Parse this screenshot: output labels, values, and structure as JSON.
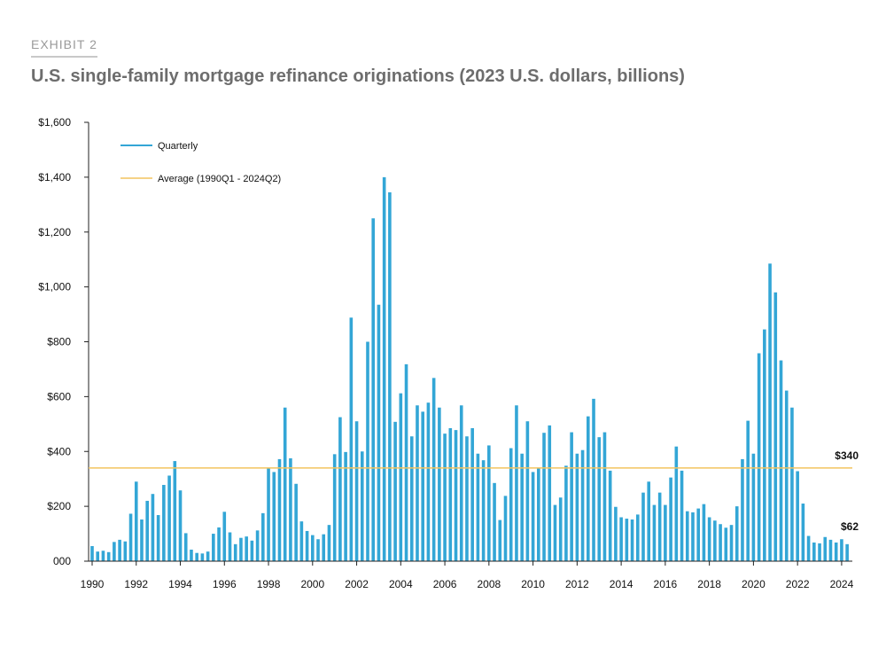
{
  "header": {
    "exhibit": "EXHIBIT 2",
    "title": "U.S. single-family mortgage refinance originations (2023 U.S. dollars, billions)"
  },
  "colors": {
    "bar": "#33a6d6",
    "average": "#f2c45f",
    "axis": "#222222"
  },
  "chart_data": {
    "type": "bar",
    "title": "U.S. single-family mortgage refinance originations (2023 U.S. dollars, billions)",
    "xlabel": "",
    "ylabel": "",
    "ylim": [
      0,
      1600
    ],
    "ytick_values": [
      0,
      200,
      400,
      600,
      800,
      1000,
      1200,
      1400,
      1600
    ],
    "ytick_labels": [
      "000",
      "$200",
      "$400",
      "$600",
      "$800",
      "$1,000",
      "$1,200",
      "$1,400",
      "$1,600"
    ],
    "xtick_labels": [
      "1990",
      "1992",
      "1994",
      "1996",
      "1998",
      "2000",
      "2002",
      "2004",
      "2006",
      "2008",
      "2010",
      "2012",
      "2014",
      "2016",
      "2018",
      "2020",
      "2022",
      "2024"
    ],
    "xtick_every_quarters": 8,
    "start_quarter": "1990Q1",
    "end_quarter": "2024Q2",
    "grid": false,
    "legend_position": "top-left",
    "series": [
      {
        "name": "Quarterly",
        "values": [
          55,
          35,
          38,
          33,
          70,
          78,
          72,
          173,
          290,
          152,
          220,
          245,
          168,
          278,
          312,
          365,
          258,
          102,
          42,
          30,
          28,
          35,
          100,
          123,
          180,
          105,
          62,
          85,
          90,
          75,
          112,
          175,
          340,
          325,
          372,
          560,
          375,
          282,
          145,
          110,
          95,
          80,
          98,
          132,
          390,
          525,
          398,
          888,
          510,
          400,
          800,
          1250,
          935,
          1400,
          1345,
          508,
          612,
          718,
          455,
          568,
          545,
          578,
          668,
          560,
          465,
          485,
          478,
          568,
          455,
          485,
          392,
          368,
          422,
          285,
          150,
          238,
          412,
          568,
          392,
          510,
          325,
          340,
          468,
          495,
          205,
          232,
          348,
          470,
          392,
          405,
          528,
          592,
          452,
          470,
          330,
          198,
          160,
          155,
          152,
          170,
          250,
          290,
          205,
          250,
          205,
          305,
          418,
          330,
          182,
          178,
          192,
          208,
          160,
          148,
          135,
          122,
          132,
          200,
          372,
          512,
          392,
          758,
          845,
          1085,
          980,
          732,
          622,
          560,
          328,
          210,
          92,
          68,
          65,
          88,
          78,
          68,
          80,
          62
        ]
      },
      {
        "name": "Average (1990Q1 - 2024Q2)",
        "value": 340
      }
    ],
    "annotations": [
      {
        "label": "$340"
      },
      {
        "label": "$62"
      }
    ]
  }
}
